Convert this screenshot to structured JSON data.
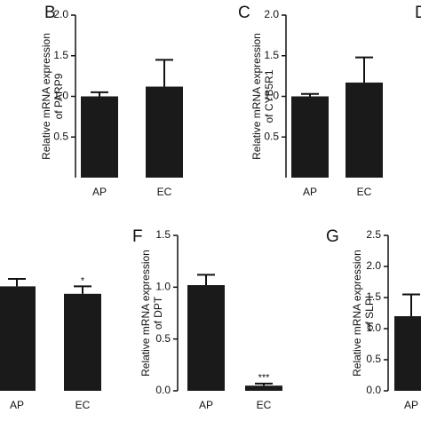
{
  "chart_data": [
    {
      "type": "bar",
      "panel": "B",
      "ylabel": "Relative mRNA expression of PARP9",
      "categories": [
        "AP",
        "EC"
      ],
      "values": [
        1.0,
        1.12
      ],
      "errors": [
        0.05,
        0.33
      ],
      "color": "#1a1a1a",
      "ylim": [
        0,
        2
      ],
      "yticks": [
        {
          "value": 2,
          "label": "2.0"
        },
        1.5,
        {
          "value": 1,
          "label": "1.0"
        },
        0.5
      ]
    },
    {
      "type": "bar",
      "panel": "C",
      "ylabel": "Relative mRNA expression of CYB5R1",
      "categories": [
        "AP",
        "EC"
      ],
      "values": [
        1.0,
        1.17
      ],
      "errors": [
        0.03,
        0.31
      ],
      "color": "#1a1a1a",
      "ylim": [
        0,
        2
      ],
      "yticks": [
        {
          "value": 2,
          "label": "2.0"
        },
        1.5,
        {
          "value": 1,
          "label": "1.0"
        },
        0.5
      ]
    },
    {
      "panel": "D"
    },
    {
      "type": "bar",
      "categories": [
        "AP",
        "EC"
      ],
      "values": [
        0.98,
        0.91
      ],
      "errors": [
        0.07,
        0.07
      ],
      "annotations": [
        null,
        "*"
      ],
      "color": "#1a1a1a",
      "ylim": [
        0,
        1.5
      ]
    },
    {
      "type": "bar",
      "panel": "F",
      "ylabel": "Relative mRNA expression of DPT",
      "categories": [
        "AP",
        "EC"
      ],
      "values": [
        1.02,
        0.05
      ],
      "errors": [
        0.1,
        0.02
      ],
      "annotations": [
        null,
        "***"
      ],
      "color": "#1a1a1a",
      "ylim": [
        0,
        1.5
      ],
      "yticks": [
        1.5,
        {
          "value": 1,
          "label": "1.0"
        },
        0.5,
        {
          "value": 0,
          "label": "0.0"
        }
      ]
    },
    {
      "type": "bar",
      "panel": "G",
      "ylabel": "Relative mRNA expression of SLPI",
      "categories": [
        "AP"
      ],
      "values": [
        1.2
      ],
      "errors": [
        0.35
      ],
      "color": "#1a1a1a",
      "ylim": [
        0,
        2.5
      ],
      "yticks": [
        2.5,
        {
          "value": 2,
          "label": "2.0"
        },
        1.5,
        {
          "value": 1,
          "label": "1.0"
        },
        0.5,
        {
          "value": 0,
          "label": "0.0"
        }
      ]
    }
  ]
}
